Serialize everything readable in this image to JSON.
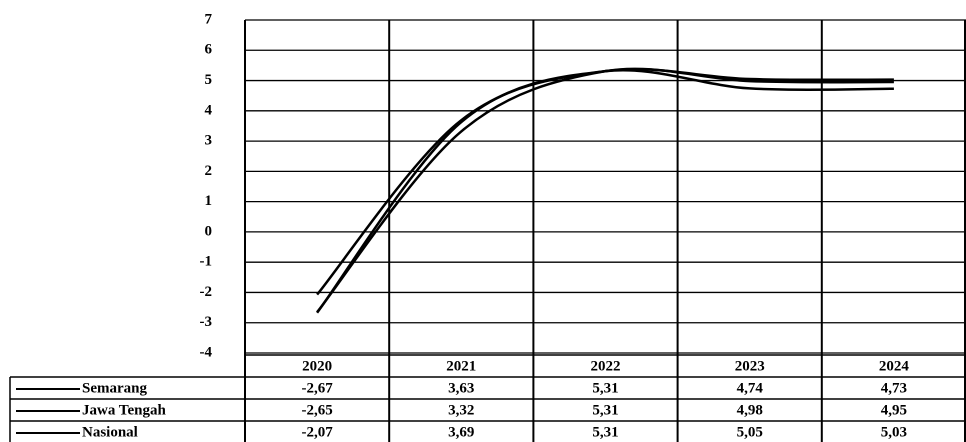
{
  "chart_data": {
    "type": "line",
    "categories": [
      "2020",
      "2021",
      "2022",
      "2023",
      "2024"
    ],
    "series": [
      {
        "name": "Semarang",
        "color": "#000000",
        "values": [
          -2.67,
          3.63,
          5.31,
          4.74,
          4.73
        ],
        "value_labels": [
          "-2,67",
          "3,63",
          "5,31",
          "4,74",
          "4,73"
        ]
      },
      {
        "name": "Jawa Tengah",
        "color": "#000000",
        "values": [
          -2.65,
          3.32,
          5.31,
          4.98,
          4.95
        ],
        "value_labels": [
          "-2,65",
          "3,32",
          "5,31",
          "4,98",
          "4,95"
        ]
      },
      {
        "name": "Nasional",
        "color": "#000000",
        "values": [
          -2.07,
          3.69,
          5.31,
          5.05,
          5.03
        ],
        "value_labels": [
          "-2,07",
          "3,69",
          "5,31",
          "5,05",
          "5,03"
        ]
      }
    ],
    "ylim": [
      -4,
      7
    ],
    "yticks": [
      -4,
      -3,
      -2,
      -1,
      0,
      1,
      2,
      3,
      4,
      5,
      6,
      7
    ],
    "grid": true
  }
}
